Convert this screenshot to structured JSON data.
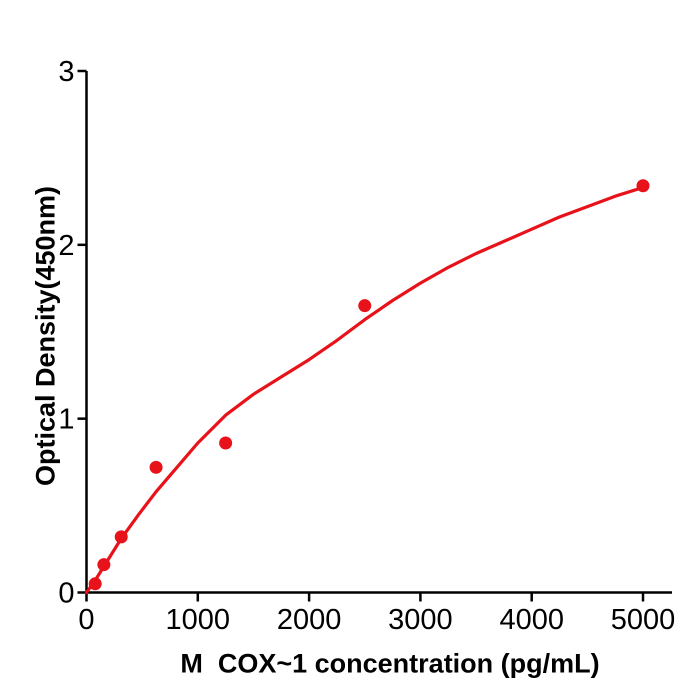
{
  "figure": {
    "background_color": "#ffffff",
    "axis_color": "#000000",
    "accent_color": "#e8121a"
  },
  "chart_data": {
    "type": "scatter",
    "title": "",
    "xlabel": "M  COX~1 concentration (pg/mL)",
    "ylabel": "Optical Density(450nm)",
    "x_ticks": [
      0,
      1000,
      2000,
      3000,
      4000,
      5000
    ],
    "y_ticks": [
      0,
      1,
      2,
      3
    ],
    "xlim": [
      0,
      5260
    ],
    "ylim": [
      0,
      3
    ],
    "grid": false,
    "legend": "none",
    "points": {
      "x": [
        78,
        156,
        312,
        625,
        1250,
        2500,
        5000
      ],
      "y": [
        0.05,
        0.16,
        0.32,
        0.72,
        0.86,
        1.65,
        2.34
      ]
    },
    "fit_curve": [
      [
        0,
        0.0
      ],
      [
        78,
        0.07
      ],
      [
        156,
        0.15
      ],
      [
        312,
        0.31
      ],
      [
        470,
        0.45
      ],
      [
        625,
        0.58
      ],
      [
        800,
        0.71
      ],
      [
        1000,
        0.86
      ],
      [
        1250,
        1.02
      ],
      [
        1500,
        1.14
      ],
      [
        1750,
        1.24
      ],
      [
        2000,
        1.34
      ],
      [
        2250,
        1.45
      ],
      [
        2500,
        1.57
      ],
      [
        2750,
        1.68
      ],
      [
        3000,
        1.78
      ],
      [
        3250,
        1.87
      ],
      [
        3500,
        1.95
      ],
      [
        3750,
        2.02
      ],
      [
        4000,
        2.09
      ],
      [
        4250,
        2.16
      ],
      [
        4500,
        2.22
      ],
      [
        4750,
        2.28
      ],
      [
        5000,
        2.33
      ]
    ],
    "marker": {
      "shape": "circle",
      "color": "#e8121a",
      "radius": 6.5
    },
    "line": {
      "color": "#e8121a",
      "width": 3.2
    }
  }
}
